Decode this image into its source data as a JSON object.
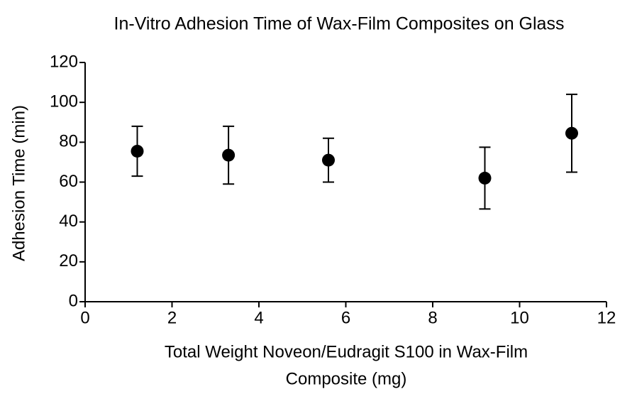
{
  "chart_data": {
    "type": "scatter",
    "title": "In-Vitro Adhesion Time of Wax-Film Composites on Glass",
    "xlabel": [
      "Total Weight Noveon/Eudragit S100 in Wax-Film",
      "Composite (mg)"
    ],
    "ylabel": "Adhesion Time (min)",
    "x": [
      1.2,
      3.3,
      5.6,
      9.2,
      11.2
    ],
    "values": [
      75.5,
      73.5,
      71,
      62,
      84.5
    ],
    "errors": [
      12.5,
      14.5,
      11,
      15.5,
      19.5
    ],
    "color": "#000000",
    "xlim": [
      0,
      12
    ],
    "xticks": [
      0,
      2,
      4,
      6,
      8,
      10,
      12
    ],
    "ylim": [
      0,
      120
    ],
    "yticks": [
      0,
      20,
      40,
      60,
      80,
      100,
      120
    ],
    "grid": false
  }
}
